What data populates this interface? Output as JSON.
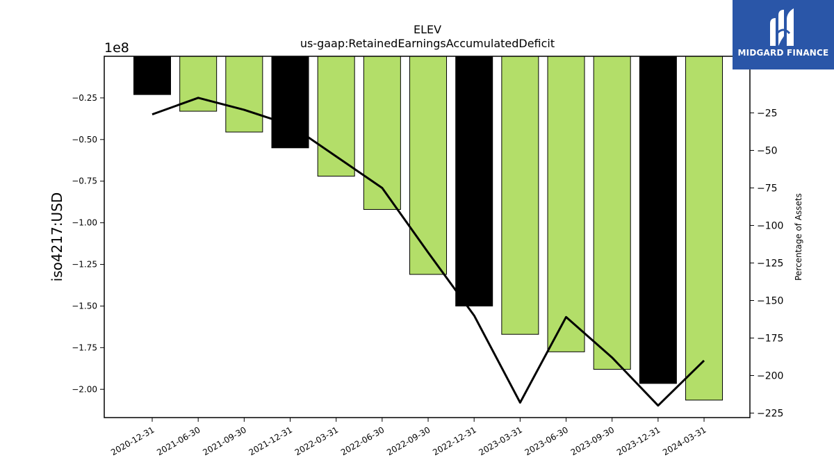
{
  "chart_data": {
    "type": "bar",
    "title": "ELEV",
    "subtitle": "us-gaap:RetainedEarningsAccumulatedDeficit",
    "ylabel": "iso4217:USD",
    "y_offset_label": "1e8",
    "y2label": "Percentage of Assets",
    "categories": [
      "2020-12-31",
      "2021-06-30",
      "2021-09-30",
      "2021-12-31",
      "2022-03-31",
      "2022-06-30",
      "2022-09-30",
      "2022-12-31",
      "2023-03-31",
      "2023-06-30",
      "2023-09-30",
      "2023-12-31",
      "2024-03-31"
    ],
    "values_1e8": [
      -0.23,
      -0.33,
      -0.455,
      -0.55,
      -0.72,
      -0.92,
      -1.31,
      -1.5,
      -1.67,
      -1.775,
      -1.88,
      -1.965,
      -2.065
    ],
    "bar_colors": [
      "#000000",
      "#b3de69",
      "#b3de69",
      "#000000",
      "#b3de69",
      "#b3de69",
      "#b3de69",
      "#000000",
      "#b3de69",
      "#b3de69",
      "#b3de69",
      "#000000",
      "#b3de69"
    ],
    "line_series": {
      "name": "Percentage of Assets",
      "values": [
        -26,
        -15,
        -23,
        -33,
        -54,
        -75,
        -118,
        -160,
        -218,
        -161,
        -188,
        -220,
        -190
      ]
    },
    "ylim": [
      -2.17,
      0
    ],
    "y2lim": [
      -228,
      12.7
    ],
    "yticks": [
      "-0.25",
      "-0.50",
      "-0.75",
      "-1.00",
      "-1.25",
      "-1.50",
      "-1.75",
      "-2.00"
    ],
    "ytick_values": [
      -0.25,
      -0.5,
      -0.75,
      -1.0,
      -1.25,
      -1.5,
      -1.75,
      -2.0
    ],
    "y2ticks": [
      "-25",
      "-50",
      "-75",
      "-100",
      "-125",
      "-150",
      "-175",
      "-200",
      "-225"
    ],
    "y2tick_values": [
      -25,
      -50,
      -75,
      -100,
      -125,
      -150,
      -175,
      -200,
      -225
    ],
    "grid": false,
    "accent_colors": {
      "bar_green": "#b3de69",
      "bar_black": "#000000",
      "line": "#000000"
    }
  },
  "logo": {
    "text": "MIDGARD FINANCE",
    "background": "#2a56a8"
  }
}
